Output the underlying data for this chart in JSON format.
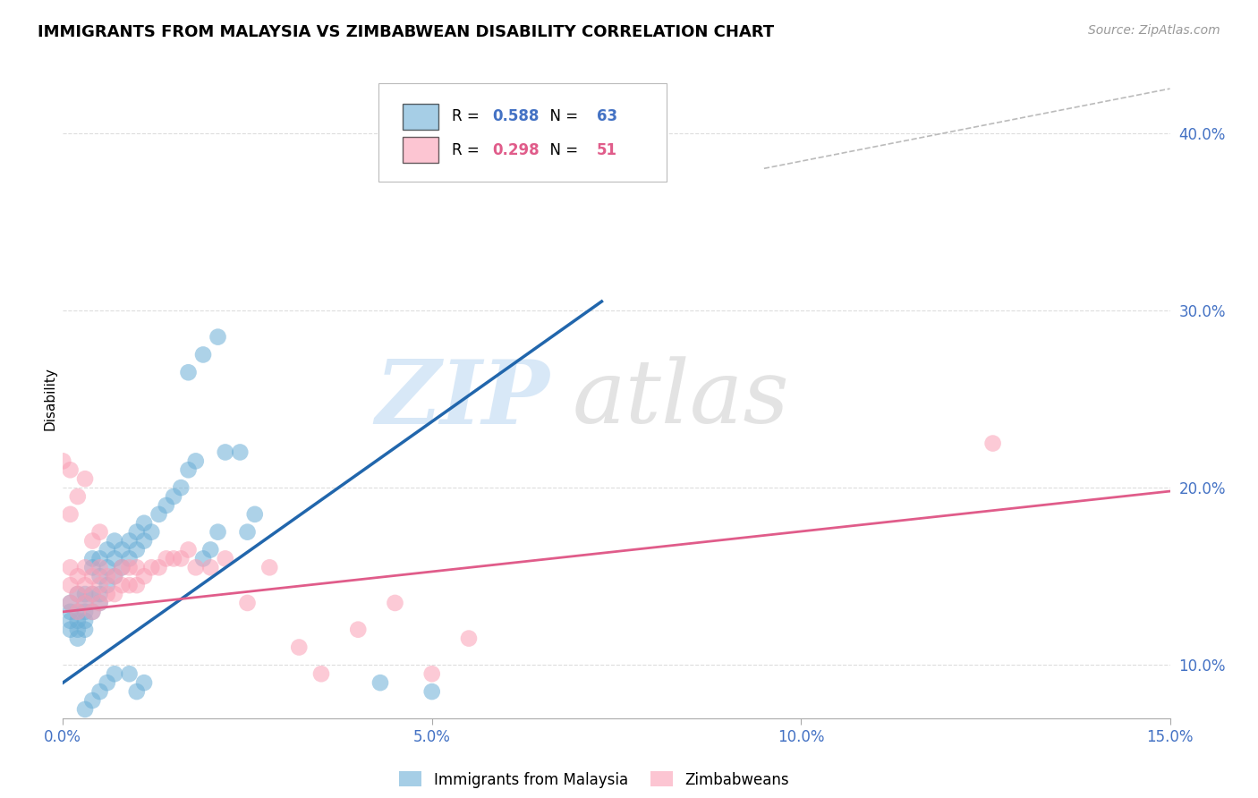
{
  "title": "IMMIGRANTS FROM MALAYSIA VS ZIMBABWEAN DISABILITY CORRELATION CHART",
  "source": "Source: ZipAtlas.com",
  "ylabel": "Disability",
  "xlim": [
    0.0,
    0.15
  ],
  "ylim": [
    0.07,
    0.43
  ],
  "xticks": [
    0.0,
    0.05,
    0.1,
    0.15
  ],
  "xtick_labels": [
    "0.0%",
    "5.0%",
    "10.0%",
    "15.0%"
  ],
  "yticks": [
    0.1,
    0.2,
    0.3,
    0.4
  ],
  "ytick_labels": [
    "10.0%",
    "20.0%",
    "30.0%",
    "40.0%"
  ],
  "blue_R": 0.588,
  "blue_N": 63,
  "pink_R": 0.298,
  "pink_N": 51,
  "blue_color": "#6baed6",
  "pink_color": "#fa9fb5",
  "blue_line_color": "#2166ac",
  "pink_line_color": "#e05c8a",
  "watermark": "ZIPatlas",
  "watermark_color": "#c0d8f0",
  "blue_line_x": [
    0.0,
    0.073
  ],
  "blue_line_y": [
    0.09,
    0.305
  ],
  "pink_line_x": [
    0.0,
    0.15
  ],
  "pink_line_y": [
    0.13,
    0.198
  ],
  "diag_line_x": [
    0.095,
    0.15
  ],
  "diag_line_y": [
    0.38,
    0.425
  ],
  "grid_color": "#dddddd",
  "blue_scatter_x": [
    0.001,
    0.001,
    0.001,
    0.001,
    0.002,
    0.002,
    0.002,
    0.002,
    0.002,
    0.003,
    0.003,
    0.003,
    0.003,
    0.003,
    0.004,
    0.004,
    0.004,
    0.004,
    0.005,
    0.005,
    0.005,
    0.005,
    0.006,
    0.006,
    0.006,
    0.007,
    0.007,
    0.007,
    0.008,
    0.008,
    0.009,
    0.009,
    0.01,
    0.01,
    0.011,
    0.011,
    0.012,
    0.013,
    0.014,
    0.015,
    0.016,
    0.017,
    0.018,
    0.019,
    0.02,
    0.021,
    0.022,
    0.024,
    0.025,
    0.026,
    0.017,
    0.019,
    0.021,
    0.009,
    0.01,
    0.011,
    0.043,
    0.05,
    0.003,
    0.004,
    0.005,
    0.006,
    0.007
  ],
  "blue_scatter_y": [
    0.12,
    0.125,
    0.13,
    0.135,
    0.115,
    0.12,
    0.125,
    0.13,
    0.14,
    0.12,
    0.125,
    0.135,
    0.13,
    0.14,
    0.13,
    0.14,
    0.155,
    0.16,
    0.135,
    0.14,
    0.15,
    0.16,
    0.145,
    0.155,
    0.165,
    0.15,
    0.16,
    0.17,
    0.155,
    0.165,
    0.16,
    0.17,
    0.165,
    0.175,
    0.17,
    0.18,
    0.175,
    0.185,
    0.19,
    0.195,
    0.2,
    0.21,
    0.215,
    0.16,
    0.165,
    0.175,
    0.22,
    0.22,
    0.175,
    0.185,
    0.265,
    0.275,
    0.285,
    0.095,
    0.085,
    0.09,
    0.09,
    0.085,
    0.075,
    0.08,
    0.085,
    0.09,
    0.095
  ],
  "pink_scatter_x": [
    0.001,
    0.001,
    0.001,
    0.002,
    0.002,
    0.002,
    0.003,
    0.003,
    0.003,
    0.004,
    0.004,
    0.004,
    0.005,
    0.005,
    0.005,
    0.006,
    0.006,
    0.007,
    0.007,
    0.008,
    0.008,
    0.009,
    0.009,
    0.01,
    0.01,
    0.011,
    0.012,
    0.013,
    0.014,
    0.015,
    0.016,
    0.017,
    0.018,
    0.02,
    0.022,
    0.025,
    0.028,
    0.032,
    0.035,
    0.04,
    0.045,
    0.05,
    0.055,
    0.001,
    0.002,
    0.003,
    0.004,
    0.005,
    0.126,
    0.0,
    0.001
  ],
  "pink_scatter_y": [
    0.135,
    0.145,
    0.155,
    0.13,
    0.14,
    0.15,
    0.135,
    0.145,
    0.155,
    0.13,
    0.14,
    0.15,
    0.135,
    0.145,
    0.155,
    0.14,
    0.15,
    0.14,
    0.15,
    0.145,
    0.155,
    0.145,
    0.155,
    0.145,
    0.155,
    0.15,
    0.155,
    0.155,
    0.16,
    0.16,
    0.16,
    0.165,
    0.155,
    0.155,
    0.16,
    0.135,
    0.155,
    0.11,
    0.095,
    0.12,
    0.135,
    0.095,
    0.115,
    0.185,
    0.195,
    0.205,
    0.17,
    0.175,
    0.225,
    0.215,
    0.21
  ]
}
